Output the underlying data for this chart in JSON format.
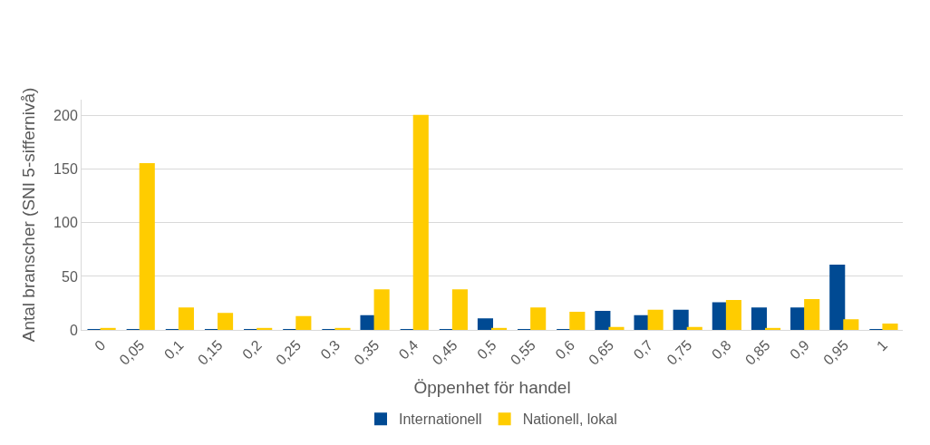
{
  "chart_data": {
    "type": "bar",
    "xlabel": "Öppenhet för handel",
    "ylabel": "Antal branscher (SNI 5-siffernivå)",
    "categories": [
      "0",
      "0,05",
      "0,1",
      "0,15",
      "0,2",
      "0,25",
      "0,3",
      "0,35",
      "0,4",
      "0,45",
      "0,5",
      "0,55",
      "0,6",
      "0,65",
      "0,7",
      "0,75",
      "0,8",
      "0,85",
      "0,9",
      "0,95",
      "1"
    ],
    "series": [
      {
        "name": "Internationell",
        "color": "#004a93",
        "values": [
          0,
          0,
          0,
          0,
          0,
          0,
          0,
          13,
          0,
          0,
          10,
          0,
          0,
          17,
          13,
          18,
          25,
          20,
          20,
          60,
          0
        ]
      },
      {
        "name": "Nationell, lokal",
        "color": "#ffcc00",
        "values": [
          1,
          155,
          20,
          15,
          1,
          12,
          1,
          37,
          200,
          37,
          1,
          20,
          16,
          2,
          18,
          2,
          27,
          1,
          28,
          9,
          5
        ]
      }
    ],
    "ylim": [
      0,
      215
    ],
    "yticks": [
      0,
      50,
      100,
      150,
      200
    ],
    "grid": "y",
    "legend": "bottom"
  }
}
